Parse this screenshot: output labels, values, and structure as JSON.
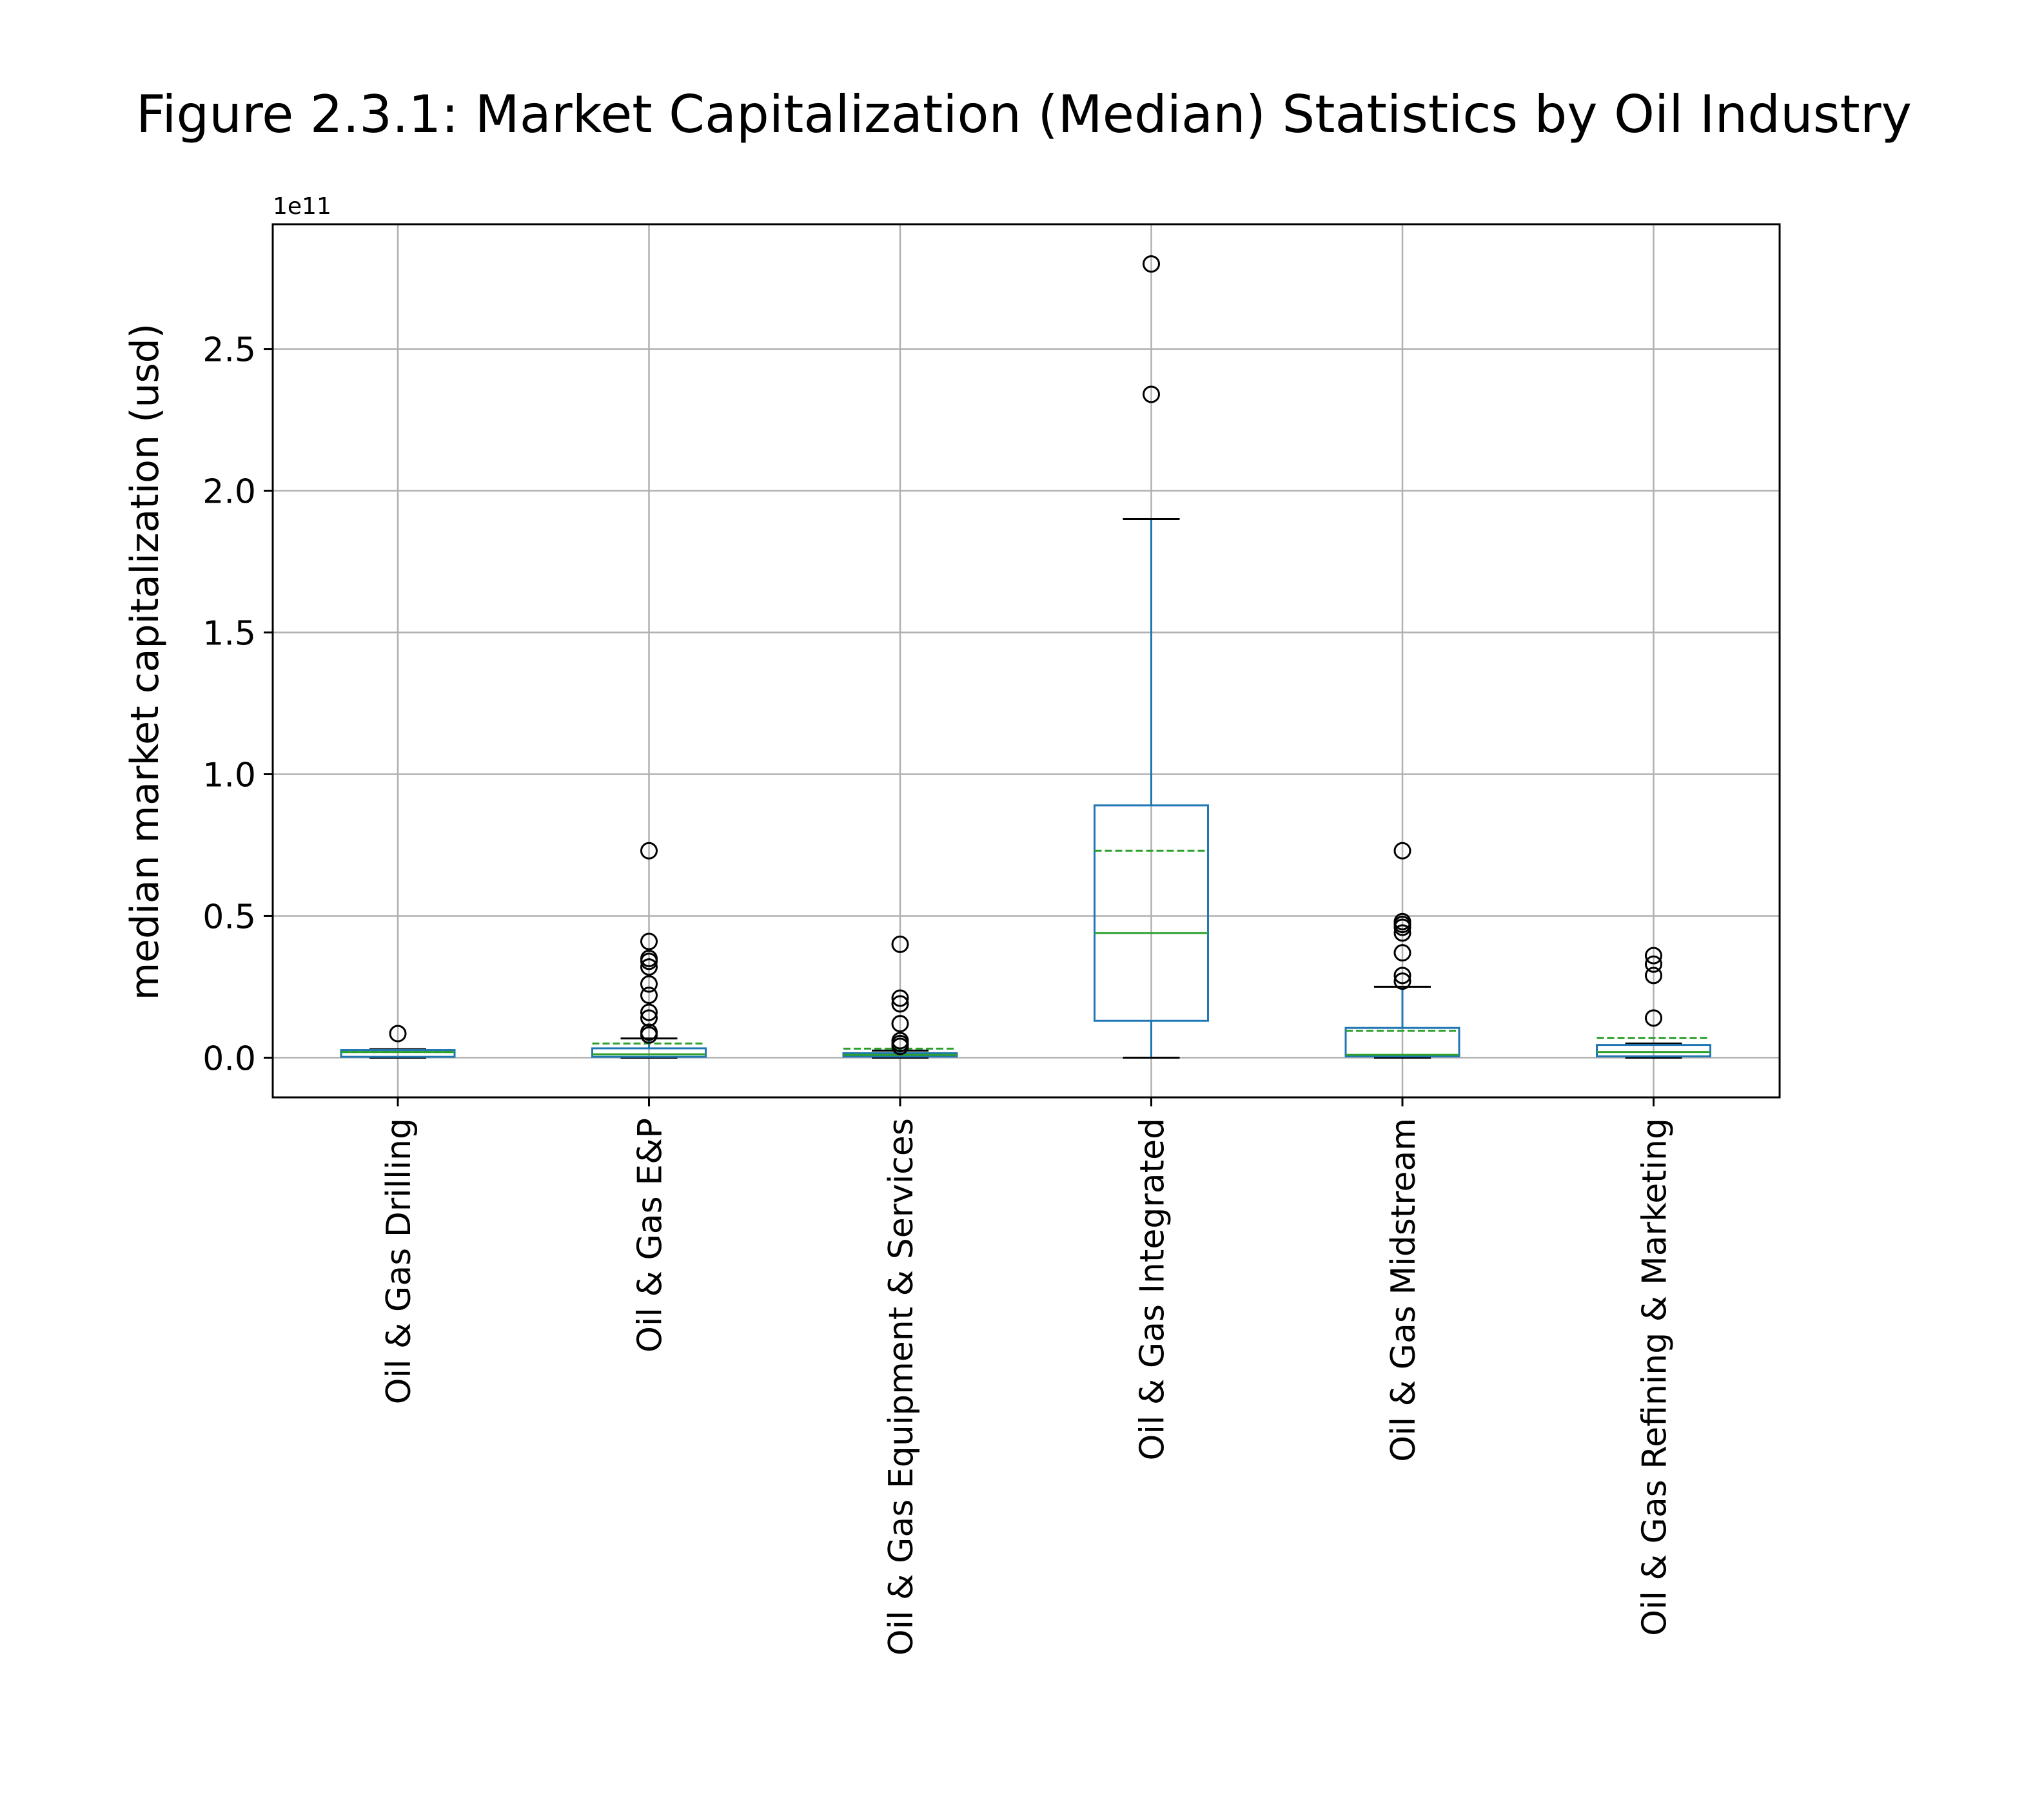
{
  "chart_data": {
    "type": "box",
    "title": "Figure 2.3.1: Market Capitalization (Median) Statistics by Oil Industry",
    "xlabel": "",
    "ylabel": "median market capitalization (usd)",
    "y_offset_label": "1e11",
    "y_scale_factor": 100000000000,
    "ylim": [
      -0.14,
      2.94
    ],
    "y_ticks": [
      0.0,
      0.5,
      1.0,
      1.5,
      2.0,
      2.5
    ],
    "y_tick_labels": [
      "0.0",
      "0.5",
      "1.0",
      "1.5",
      "2.0",
      "2.5"
    ],
    "grid": true,
    "categories": [
      "Oil & Gas Drilling",
      "Oil & Gas E&P",
      "Oil & Gas Equipment & Services",
      "Oil & Gas Integrated",
      "Oil & Gas Midstream",
      "Oil & Gas Refining & Marketing"
    ],
    "boxes": [
      {
        "whisker_low": 0.0,
        "q1": 0.003,
        "median": 0.02,
        "q3": 0.027,
        "whisker_high": 0.03,
        "mean": 0.02,
        "outliers": [
          0.085
        ]
      },
      {
        "whisker_low": 0.0,
        "q1": 0.003,
        "median": 0.012,
        "q3": 0.033,
        "whisker_high": 0.068,
        "mean": 0.05,
        "outliers": [
          0.08,
          0.09,
          0.14,
          0.16,
          0.22,
          0.26,
          0.32,
          0.34,
          0.35,
          0.41,
          0.73
        ]
      },
      {
        "whisker_low": 0.0,
        "q1": 0.004,
        "median": 0.01,
        "q3": 0.016,
        "whisker_high": 0.025,
        "mean": 0.032,
        "outliers": [
          0.04,
          0.05,
          0.06,
          0.12,
          0.19,
          0.21,
          0.4
        ]
      },
      {
        "whisker_low": 0.0,
        "q1": 0.13,
        "median": 0.44,
        "q3": 0.89,
        "whisker_high": 1.9,
        "mean": 0.73,
        "outliers": [
          2.34,
          2.8
        ]
      },
      {
        "whisker_low": 0.0,
        "q1": 0.005,
        "median": 0.01,
        "q3": 0.105,
        "whisker_high": 0.25,
        "mean": 0.095,
        "outliers": [
          0.27,
          0.29,
          0.37,
          0.44,
          0.46,
          0.47,
          0.48,
          0.73
        ]
      },
      {
        "whisker_low": 0.0,
        "q1": 0.005,
        "median": 0.02,
        "q3": 0.045,
        "whisker_high": 0.05,
        "mean": 0.07,
        "outliers": [
          0.14,
          0.29,
          0.33,
          0.36
        ]
      }
    ],
    "colors": {
      "box": "#1f77b4",
      "median": "#2ca02c",
      "mean": "#2ca02c",
      "whisker_cap": "#000000",
      "outlier": "#000000",
      "grid": "#b0b0b0"
    }
  }
}
